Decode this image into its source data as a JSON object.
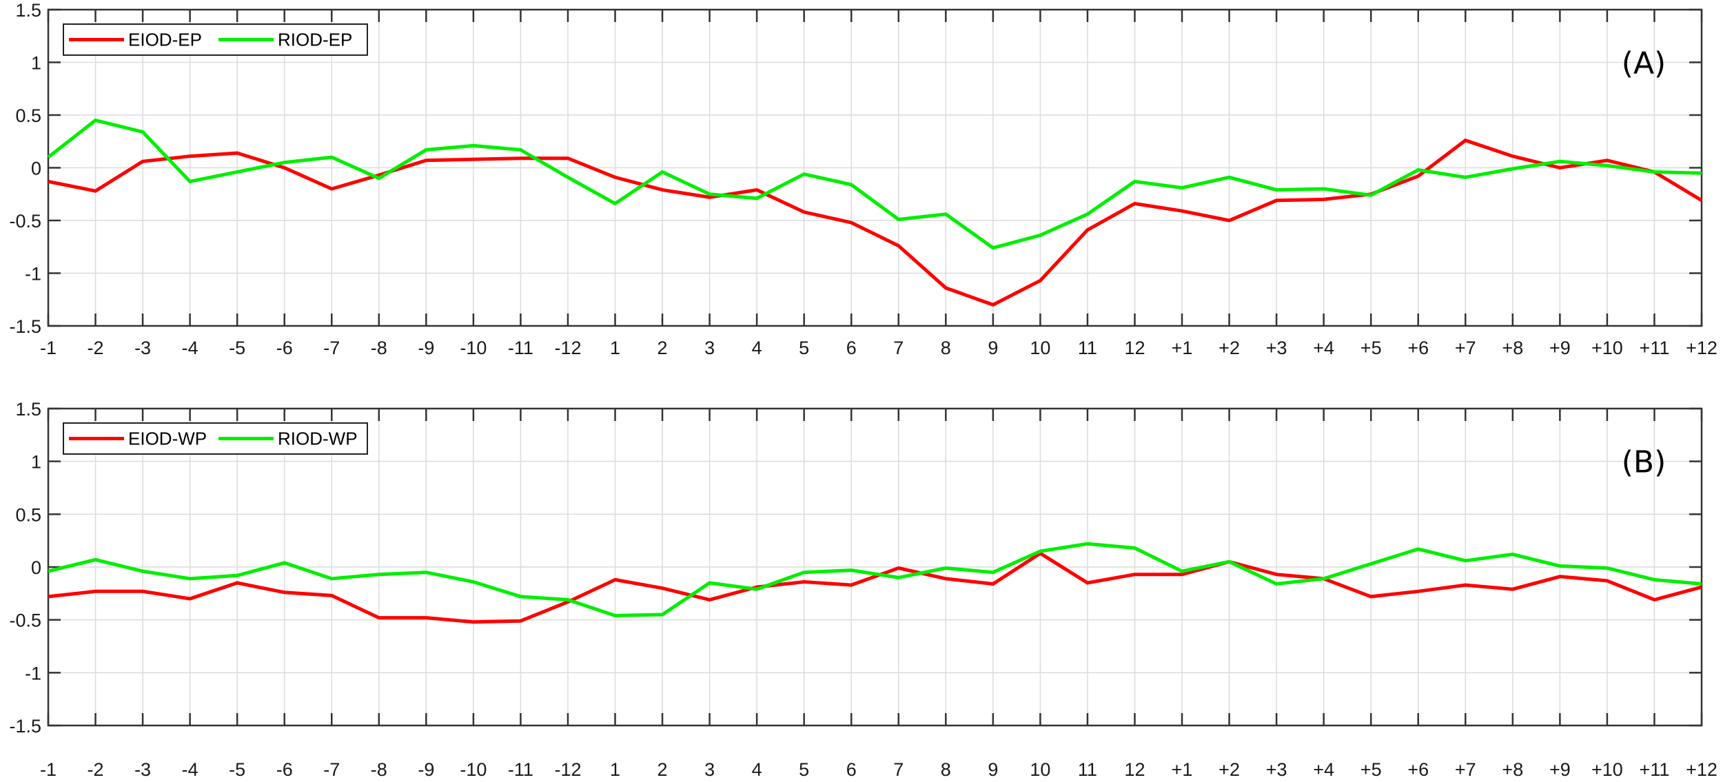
{
  "chart_data": [
    {
      "type": "line",
      "panel_label": "(A)",
      "title": "",
      "xlabel": "",
      "ylabel": "",
      "ylim": [
        -1.5,
        1.5
      ],
      "yticks": [
        -1.5,
        -1,
        -0.5,
        0,
        0.5,
        1,
        1.5
      ],
      "ytick_labels": [
        "-1.5",
        "-1",
        "-0.5",
        "0",
        "0.5",
        "1",
        "1.5"
      ],
      "grid": true,
      "legend_position": "upper left",
      "categories": [
        "-1",
        "-2",
        "-3",
        "-4",
        "-5",
        "-6",
        "-7",
        "-8",
        "-9",
        "-10",
        "-11",
        "-12",
        "1",
        "2",
        "3",
        "4",
        "5",
        "6",
        "7",
        "8",
        "9",
        "10",
        "11",
        "12",
        "+1",
        "+2",
        "+3",
        "+4",
        "+5",
        "+6",
        "+7",
        "+8",
        "+9",
        "+10",
        "+11",
        "+12"
      ],
      "series": [
        {
          "name": "EIOD-EP",
          "color": "#ff0000",
          "values": [
            -0.13,
            -0.22,
            0.06,
            0.11,
            0.14,
            0.0,
            -0.2,
            -0.07,
            0.07,
            0.08,
            0.09,
            0.09,
            -0.09,
            -0.21,
            -0.28,
            -0.21,
            -0.42,
            -0.52,
            -0.74,
            -1.14,
            -1.3,
            -1.07,
            -0.59,
            -0.34,
            -0.41,
            -0.5,
            -0.31,
            -0.3,
            -0.25,
            -0.08,
            0.26,
            0.11,
            0.0,
            0.07,
            -0.04,
            -0.31
          ]
        },
        {
          "name": "RIOD-EP",
          "color": "#00ee00",
          "values": [
            0.1,
            0.45,
            0.34,
            -0.13,
            -0.04,
            0.05,
            0.1,
            -0.1,
            0.17,
            0.21,
            0.17,
            -0.09,
            -0.34,
            -0.04,
            -0.25,
            -0.29,
            -0.06,
            -0.16,
            -0.49,
            -0.44,
            -0.76,
            -0.64,
            -0.44,
            -0.13,
            -0.19,
            -0.09,
            -0.21,
            -0.2,
            -0.26,
            -0.02,
            -0.09,
            -0.01,
            0.06,
            0.02,
            -0.04,
            -0.05
          ]
        }
      ]
    },
    {
      "type": "line",
      "panel_label": "(B)",
      "title": "",
      "xlabel": "",
      "ylabel": "",
      "ylim": [
        -1.5,
        1.5
      ],
      "yticks": [
        -1.5,
        -1,
        -0.5,
        0,
        0.5,
        1,
        1.5
      ],
      "ytick_labels": [
        "-1.5",
        "-1",
        "-0.5",
        "0",
        "0.5",
        "1",
        "1.5"
      ],
      "grid": true,
      "legend_position": "upper left",
      "categories": [
        "-1",
        "-2",
        "-3",
        "-4",
        "-5",
        "-6",
        "-7",
        "-8",
        "-9",
        "-10",
        "-11",
        "-12",
        "1",
        "2",
        "3",
        "4",
        "5",
        "6",
        "7",
        "8",
        "9",
        "10",
        "11",
        "12",
        "+1",
        "+2",
        "+3",
        "+4",
        "+5",
        "+6",
        "+7",
        "+8",
        "+9",
        "+10",
        "+11",
        "+12"
      ],
      "series": [
        {
          "name": "EIOD-WP",
          "color": "#ff0000",
          "values": [
            -0.28,
            -0.23,
            -0.23,
            -0.3,
            -0.15,
            -0.24,
            -0.27,
            -0.48,
            -0.48,
            -0.52,
            -0.51,
            -0.33,
            -0.12,
            -0.2,
            -0.31,
            -0.19,
            -0.14,
            -0.17,
            -0.01,
            -0.11,
            -0.16,
            0.13,
            -0.15,
            -0.07,
            -0.07,
            0.05,
            -0.07,
            -0.11,
            -0.28,
            -0.23,
            -0.17,
            -0.21,
            -0.09,
            -0.13,
            -0.31,
            -0.19
          ]
        },
        {
          "name": "RIOD-WP",
          "color": "#00ee00",
          "values": [
            -0.04,
            0.07,
            -0.04,
            -0.11,
            -0.08,
            0.04,
            -0.11,
            -0.07,
            -0.05,
            -0.14,
            -0.28,
            -0.31,
            -0.46,
            -0.45,
            -0.15,
            -0.21,
            -0.05,
            -0.03,
            -0.1,
            -0.01,
            -0.05,
            0.15,
            0.22,
            0.18,
            -0.04,
            0.05,
            -0.16,
            -0.11,
            0.03,
            0.17,
            0.06,
            0.12,
            0.01,
            -0.01,
            -0.12,
            -0.16
          ]
        }
      ]
    }
  ]
}
